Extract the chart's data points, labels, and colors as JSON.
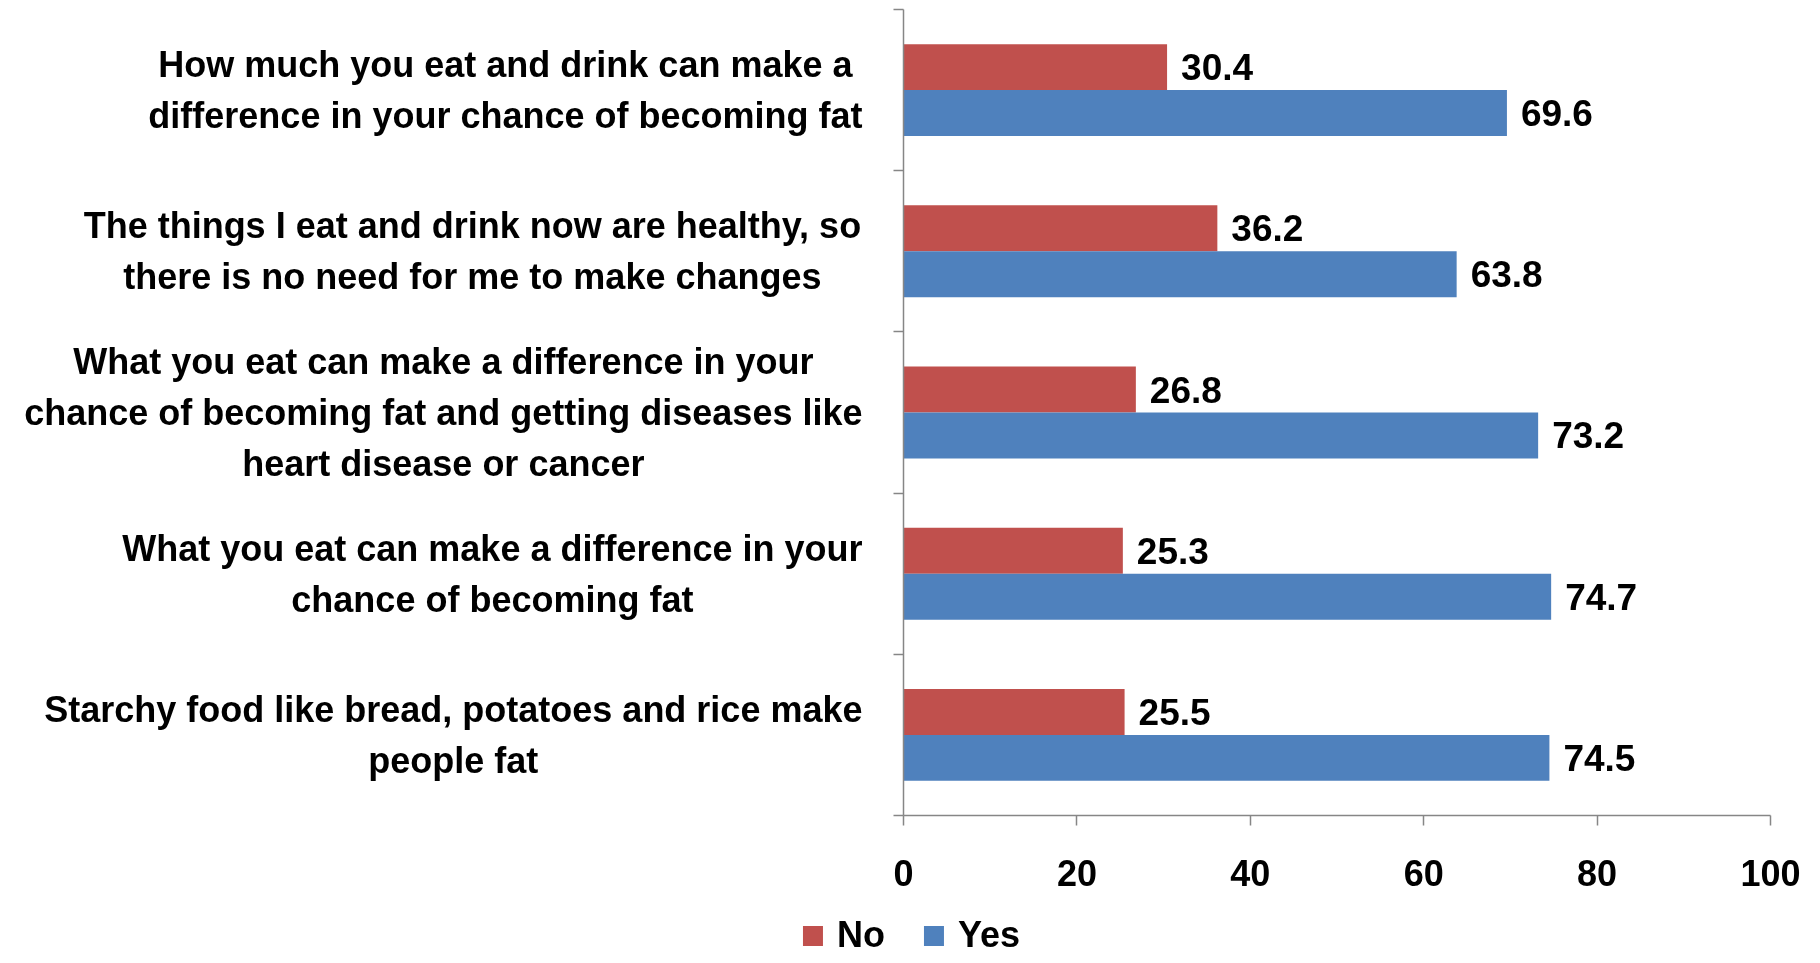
{
  "chart_data": {
    "type": "bar",
    "orientation": "horizontal",
    "categories": [
      "How much you eat and drink can make a difference in your chance of becoming fat",
      "The things I eat and drink now are healthy, so there is no need for me to make changes",
      "What you eat can make a difference in your chance of becoming fat and getting diseases like heart disease or cancer",
      "What you eat can make a difference in your chance of becoming fat",
      "Starchy food like bread, potatoes and rice make people fat"
    ],
    "series": [
      {
        "name": "No",
        "color": "#c0504d",
        "values": [
          30.4,
          36.2,
          26.8,
          25.3,
          25.5
        ]
      },
      {
        "name": "Yes",
        "color": "#4f81bd",
        "values": [
          69.6,
          63.8,
          73.2,
          74.7,
          74.5
        ]
      }
    ],
    "xlim": [
      0,
      100
    ],
    "xticks": [
      0,
      20,
      40,
      60,
      80,
      100
    ],
    "data_labels": true,
    "legend": "bottom"
  }
}
